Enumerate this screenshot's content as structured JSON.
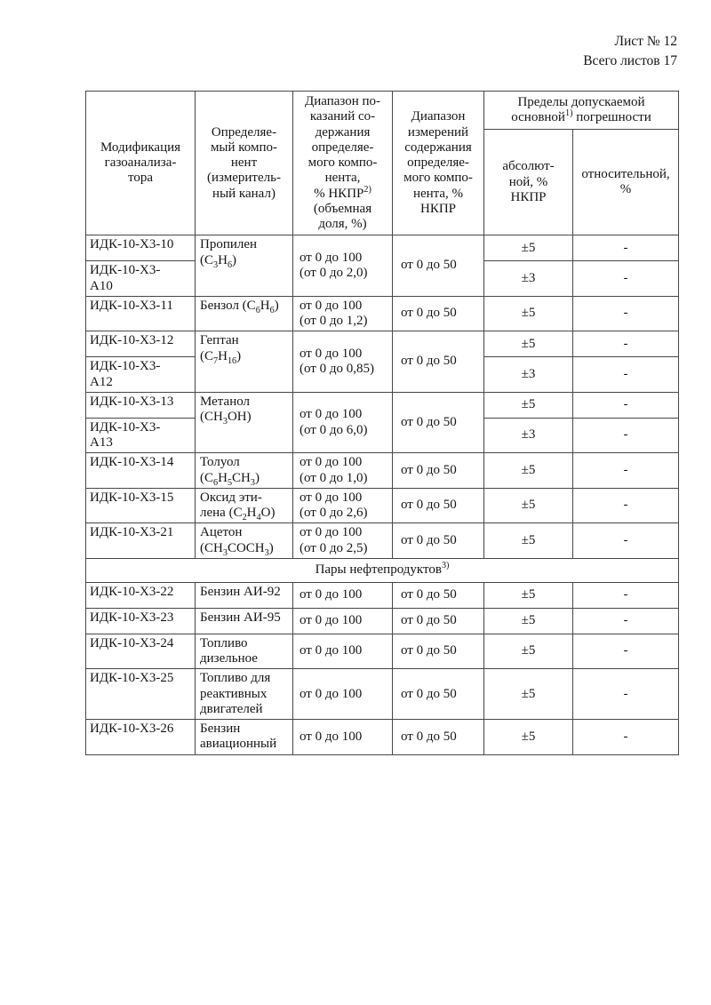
{
  "page_header": {
    "sheet": "Лист № 12",
    "total_sheets": "Всего листов 17"
  },
  "table": {
    "header": {
      "modification": "Модификация\nгазоанализа-\nтора",
      "component": "Определяе-\nмый компо-\nнент\n(измеритель-\nный канал)",
      "indication_range": "Диапазон по-\nказаний со-\nдержания\nопределяе-\nмого компо-\nнента,\n% НКПР^{2)}\n(объемная\nдоля, %)",
      "measurement_range": "Диапазон\nизмерений\nсодержания\nопределяе-\nмого компо-\nнента, %\nНКПР",
      "error_limits": "Пределы допускаемой\nосновной^{1)} погрешности",
      "absolute": "абсолют-\nной, %\nНКПР",
      "relative": "относительной,\n%"
    },
    "rows": [
      {
        "mods": [
          "ИДК-10-Х3-10",
          "ИДК-10-Х3-\nА10"
        ],
        "component": "Пропилен\n(C_{3}H_{6})",
        "indication": "от 0 до 100\n(от 0 до 2,0)",
        "measurement": "от 0 до 50",
        "absolute": [
          "±5",
          "±3"
        ],
        "relative": [
          "-",
          "-"
        ]
      },
      {
        "mods": [
          "ИДК-10-Х3-11"
        ],
        "component": "Бензол (C_{6}H_{6})",
        "indication": "от 0 до 100\n(от 0 до 1,2)",
        "measurement": "от 0 до 50",
        "absolute": [
          "±5"
        ],
        "relative": [
          "-"
        ]
      },
      {
        "mods": [
          "ИДК-10-Х3-12",
          "ИДК-10-Х3-\nА12"
        ],
        "component": "Гептан\n(C_{7}H_{16})",
        "indication": "от 0 до 100\n(от 0 до 0,85)",
        "measurement": "от 0 до 50",
        "absolute": [
          "±5",
          "±3"
        ],
        "relative": [
          "-",
          "-"
        ]
      },
      {
        "mods": [
          "ИДК-10-Х3-13",
          "ИДК-10-Х3-\nА13"
        ],
        "component": "Метанол\n(CH_{3}OH)",
        "indication": "от 0 до 100\n(от 0 до 6,0)",
        "measurement": "от 0 до 50",
        "absolute": [
          "±5",
          "±3"
        ],
        "relative": [
          "-",
          "-"
        ]
      },
      {
        "mods": [
          "ИДК-10-Х3-14"
        ],
        "component": "Толуол\n(C_{6}H_{5}CH_{3})",
        "indication": "от 0 до 100\n(от 0 до 1,0)",
        "measurement": "от 0 до 50",
        "absolute": [
          "±5"
        ],
        "relative": [
          "-"
        ]
      },
      {
        "mods": [
          "ИДК-10-Х3-15"
        ],
        "component": "Оксид эти-\nлена (C_{2}H_{4}O)",
        "indication": "от 0 до 100\n(от 0 до 2,6)",
        "measurement": "от 0 до 50",
        "absolute": [
          "±5"
        ],
        "relative": [
          "-"
        ]
      },
      {
        "mods": [
          "ИДК-10-Х3-21"
        ],
        "component": "Ацетон\n(CH_{3}COCH_{3})",
        "indication": "от 0 до 100\n(от 0 до 2,5)",
        "measurement": "от 0 до 50",
        "absolute": [
          "±5"
        ],
        "relative": [
          "-"
        ]
      },
      {
        "section": "Пары нефтепродуктов^{3)}"
      },
      {
        "mods": [
          "ИДК-10-Х3-22"
        ],
        "component": "Бензин АИ-92",
        "indication": "от 0 до 100",
        "measurement": "от 0 до 50",
        "absolute": [
          "±5"
        ],
        "relative": [
          "-"
        ]
      },
      {
        "mods": [
          "ИДК-10-Х3-23"
        ],
        "component": "Бензин АИ-95",
        "indication": "от 0 до 100",
        "measurement": "от 0 до 50",
        "absolute": [
          "±5"
        ],
        "relative": [
          "-"
        ]
      },
      {
        "mods": [
          "ИДК-10-Х3-24"
        ],
        "component": "Топливо\nдизельное",
        "indication": "от 0 до 100",
        "measurement": "от 0 до 50",
        "absolute": [
          "±5"
        ],
        "relative": [
          "-"
        ]
      },
      {
        "mods": [
          "ИДК-10-Х3-25"
        ],
        "component": "Топливо для\nреактивных\nдвигателей",
        "indication": "от 0 до 100",
        "measurement": "от 0 до 50",
        "absolute": [
          "±5"
        ],
        "relative": [
          "-"
        ]
      },
      {
        "mods": [
          "ИДК-10-Х3-26"
        ],
        "component": "Бензин\nавиационный",
        "indication": "от 0 до 100",
        "measurement": "от 0 до 50",
        "absolute": [
          "±5"
        ],
        "relative": [
          "-"
        ]
      }
    ]
  }
}
